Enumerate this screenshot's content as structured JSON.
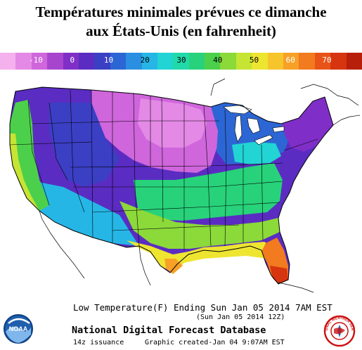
{
  "title": {
    "line1": "Températures minimales prévues ce dimanche",
    "line2": "aux États-Unis (en fahrenheit)"
  },
  "legend": {
    "ticks": [
      "-10",
      "0",
      "10",
      "20",
      "30",
      "40",
      "50",
      "60",
      "70"
    ],
    "colors": [
      "#f5b0ee",
      "#e489e6",
      "#cf66dc",
      "#a845cf",
      "#7f2fc7",
      "#5a2cc2",
      "#3b3fc4",
      "#2c66d4",
      "#2a8fe0",
      "#25b6e6",
      "#22d4d4",
      "#22d9a9",
      "#28d27a",
      "#4cd04b",
      "#8cd93a",
      "#c6e433",
      "#eee531",
      "#f6c52b",
      "#f7a126",
      "#f27a1f",
      "#e85418",
      "#d73410",
      "#b81f0a"
    ]
  },
  "footer": {
    "caption": "Low Temperature(F) Ending Sun Jan 05 2014  7AM EST",
    "subcaption": "(Sun Jan 05 2014 12Z)",
    "database": "National Digital Forecast Database",
    "issuance": "14z issuance",
    "created": "Graphic created-Jan 04  9:07AM EST"
  },
  "logos": {
    "left": "NOAA",
    "right": "NATIONAL WEATHER SERVICE"
  }
}
